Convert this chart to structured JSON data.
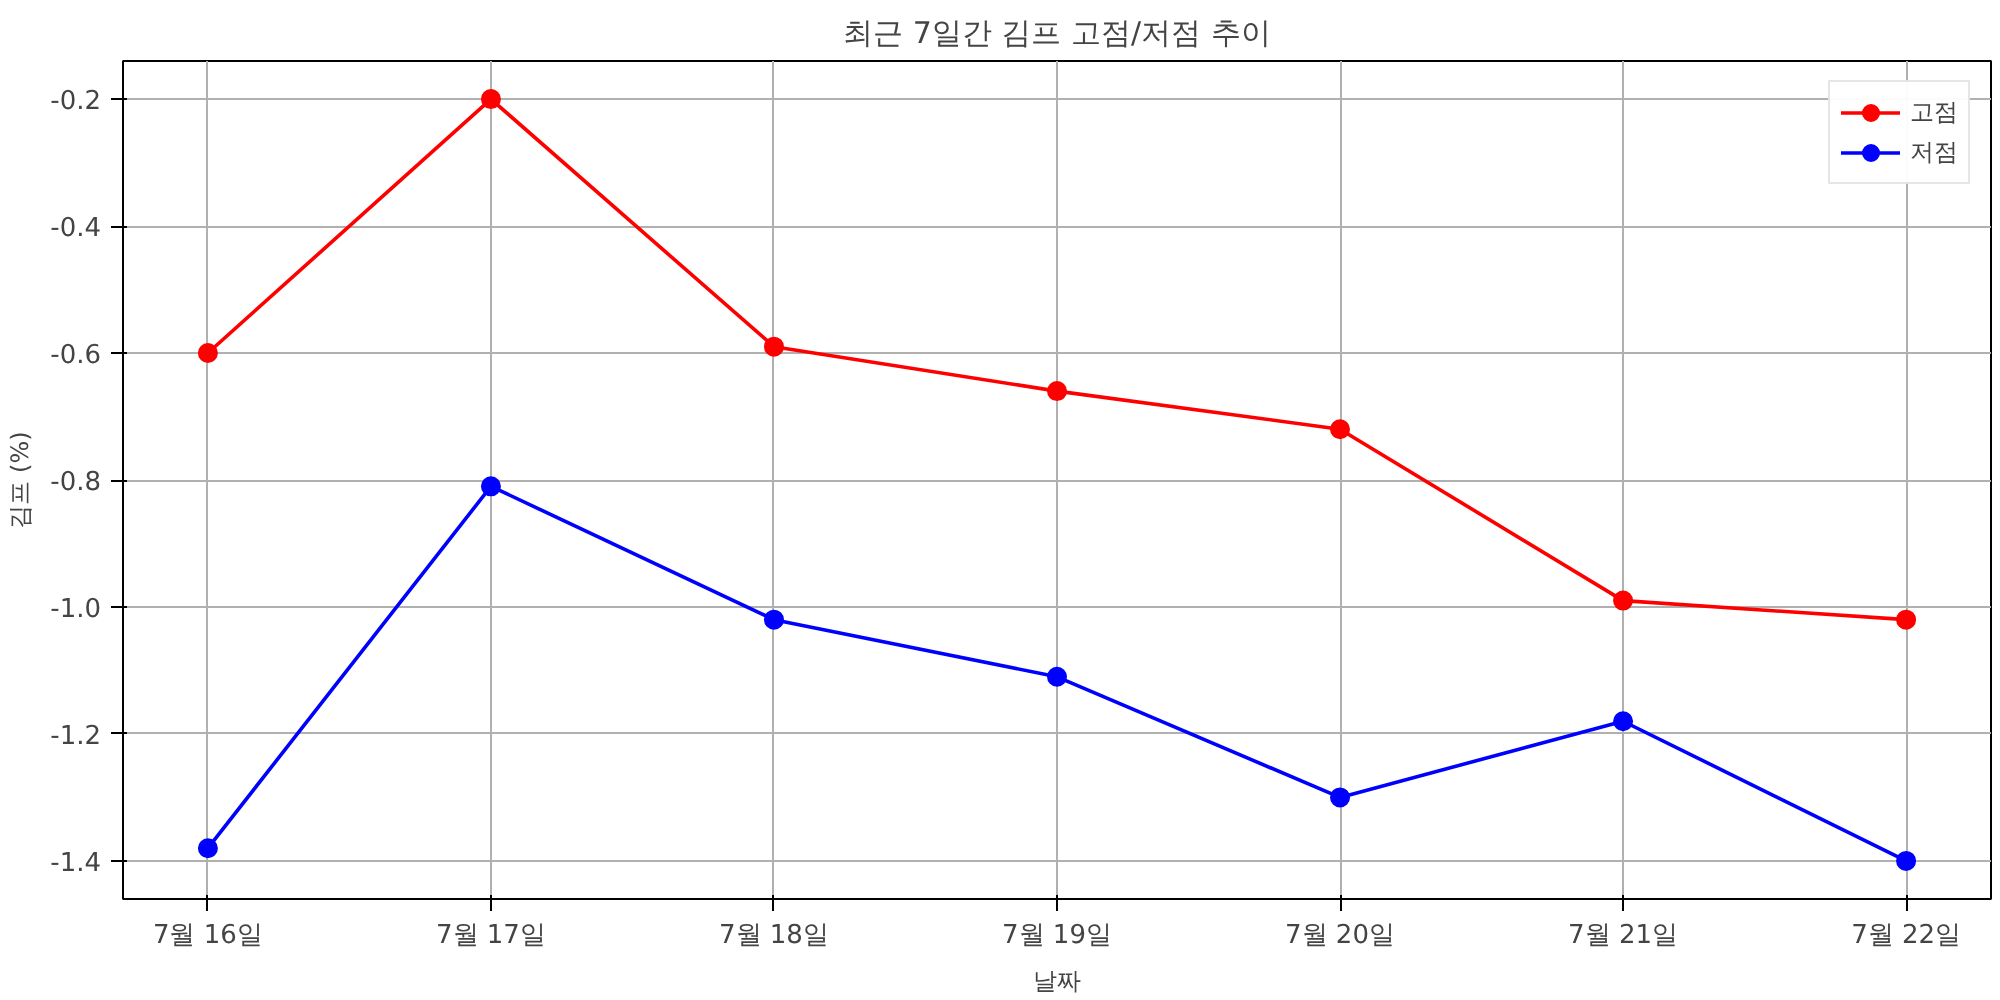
{
  "chart_data": {
    "type": "line",
    "title": "최근 7일간 김프 고점/저점 추이",
    "xlabel": "날짜",
    "ylabel": "김프 (%)",
    "categories": [
      "7월 16일",
      "7월 17일",
      "7월 18일",
      "7월 19일",
      "7월 20일",
      "7월 21일",
      "7월 22일"
    ],
    "series": [
      {
        "name": "고점",
        "color": "#ff0000",
        "values": [
          -0.6,
          -0.2,
          -0.59,
          -0.66,
          -0.72,
          -0.99,
          -1.02
        ]
      },
      {
        "name": "저점",
        "color": "#0000ff",
        "values": [
          -1.38,
          -0.81,
          -1.02,
          -1.11,
          -1.3,
          -1.18,
          -1.4
        ]
      }
    ],
    "ylim": [
      -1.46,
      -0.14
    ],
    "yticks": [
      {
        "value": -1.4,
        "label": "-1.4"
      },
      {
        "value": -1.2,
        "label": "-1.2"
      },
      {
        "value": -1.0,
        "label": "-1.0"
      },
      {
        "value": -0.8,
        "label": "-0.8"
      },
      {
        "value": -0.6,
        "label": "-0.6"
      },
      {
        "value": -0.4,
        "label": "-0.4"
      },
      {
        "value": -0.2,
        "label": "-0.2"
      }
    ],
    "grid": true,
    "legend": "top right",
    "marker": "circle",
    "line_style": "solid"
  }
}
